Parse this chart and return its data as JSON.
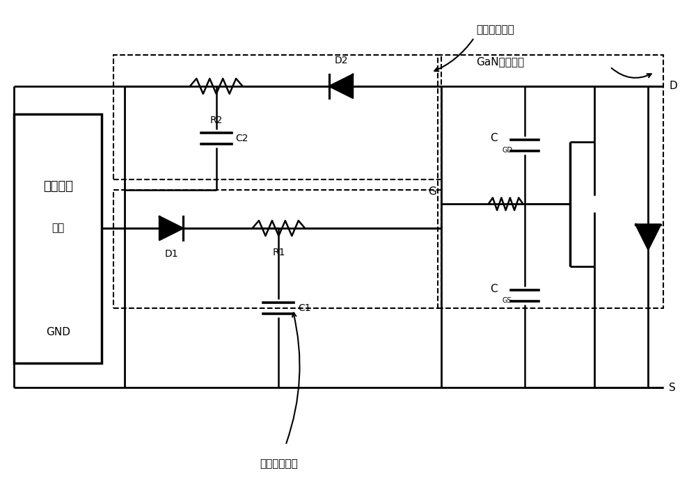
{
  "bg_color": "#ffffff",
  "line_color": "#000000",
  "chip_label1": "驱动芯片",
  "chip_label2": "输出",
  "chip_label3": "GND",
  "label_off_ctrl": "关断控制单元",
  "label_on_ctrl": "开通控制单元",
  "label_gan": "GaN功率器件",
  "label_D2": "D2",
  "label_R2": "R2",
  "label_C2": "C2",
  "label_D1": "D1",
  "label_R1": "R1",
  "label_C1": "C1",
  "label_G": "G",
  "label_D": "D",
  "label_S": "S"
}
